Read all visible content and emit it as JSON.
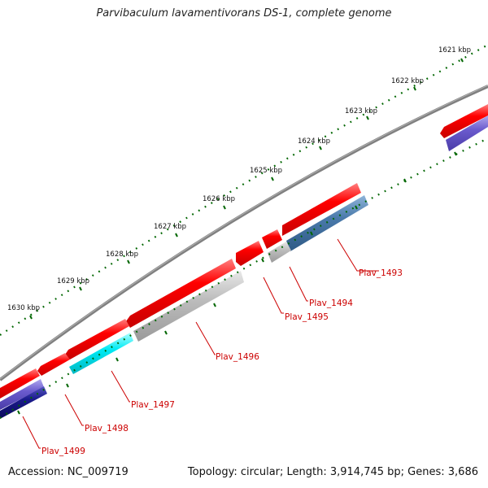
{
  "title": "Parvibaculum lavamentivorans DS-1, complete genome",
  "footer": {
    "accession": "Accession: NC_009719",
    "summary": "Topology: circular; Length: 3,914,745 bp; Genes: 3,686"
  },
  "ruler": {
    "labels": [
      "1621 kbp",
      "1622 kbp",
      "1623 kbp",
      "1624 kbp",
      "1625 kbp",
      "1626 kbp",
      "1627 kbp",
      "1628 kbp",
      "1629 kbp",
      "1630 kbp"
    ]
  },
  "gene_labels": [
    "Plav_1493",
    "Plav_1494",
    "Plav_1495",
    "Plav_1496",
    "Plav_1497",
    "Plav_1498",
    "Plav_1499"
  ],
  "colors": {
    "cds": "#ee0000",
    "backbone": "#808080",
    "tick": "#006600",
    "label": "#cc0000",
    "gray_feature": "#b4b4b4",
    "blue_feature": "#4a7aab",
    "cyan_feature": "#00e8f0",
    "purple_feature": "#6a5acd",
    "navy_feature": "#1a1a8c"
  }
}
